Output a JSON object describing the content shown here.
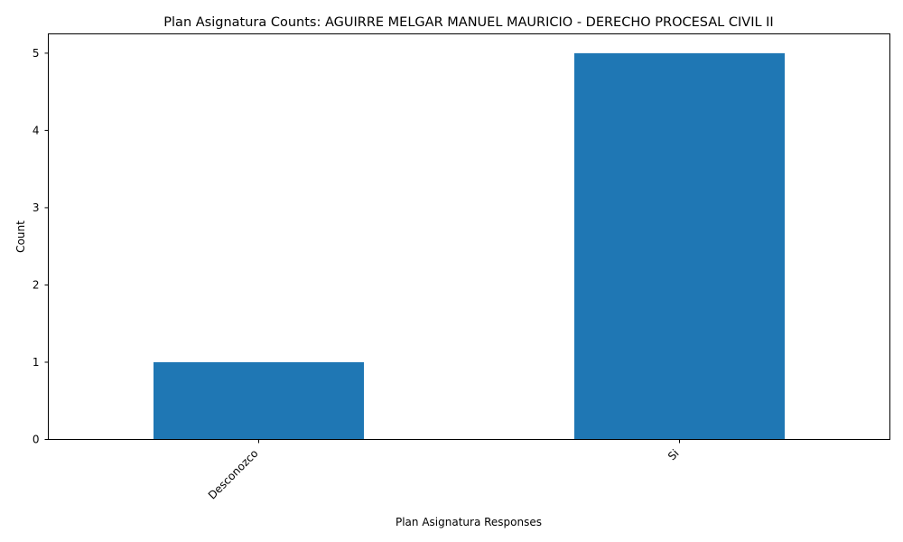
{
  "chart_data": {
    "type": "bar",
    "title": "Plan Asignatura Counts: AGUIRRE MELGAR MANUEL MAURICIO - DERECHO PROCESAL CIVIL II",
    "xlabel": "Plan Asignatura Responses",
    "ylabel": "Count",
    "categories": [
      "Desconozco",
      "Si"
    ],
    "values": [
      1,
      5
    ],
    "ylim": [
      0,
      5.25
    ],
    "yticks": [
      "0",
      "1",
      "2",
      "3",
      "4",
      "5"
    ],
    "bar_color": "#1f77b4",
    "grid": false,
    "legend": "none"
  }
}
